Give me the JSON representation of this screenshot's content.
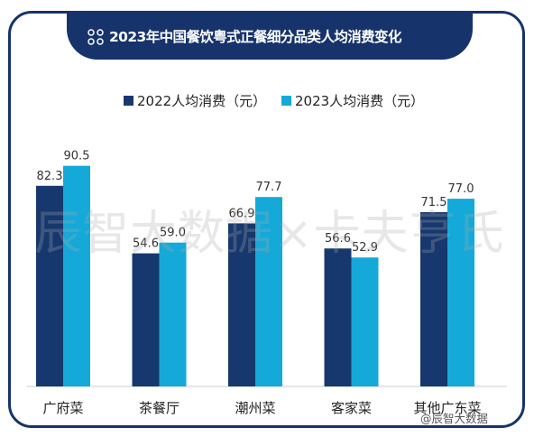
{
  "header": {
    "title": "2023年中国餐饮粤式正餐细分品类人均消费变化",
    "icon": "grid-dots-icon"
  },
  "watermark": "辰智大数据×卡夫亨氏",
  "credit": "@辰智大数据",
  "colors": {
    "frame": "#17336b",
    "series_2022": "#17386e",
    "series_2023": "#14a9d8"
  },
  "chart_data": {
    "type": "bar",
    "title": "2023年中国餐饮粤式正餐细分品类人均消费变化",
    "categories": [
      "广府菜",
      "茶餐厅",
      "潮州菜",
      "客家菜",
      "其他广东菜"
    ],
    "series": [
      {
        "name": "2022人均消费（元）",
        "values": [
          82.3,
          54.6,
          66.9,
          56.6,
          71.5
        ],
        "color": "#17386e"
      },
      {
        "name": "2023人均消费（元）",
        "values": [
          90.5,
          59.0,
          77.7,
          52.9,
          77.0
        ],
        "color": "#14a9d8"
      }
    ],
    "value_labels": [
      [
        "82.3",
        "54.6",
        "66.9",
        "56.6",
        "71.5"
      ],
      [
        "90.5",
        "59.0",
        "77.7",
        "52.9",
        "77.0"
      ]
    ],
    "ylim": [
      0,
      100
    ],
    "legend_position": "top",
    "grid": false,
    "xlabel": "",
    "ylabel": ""
  }
}
